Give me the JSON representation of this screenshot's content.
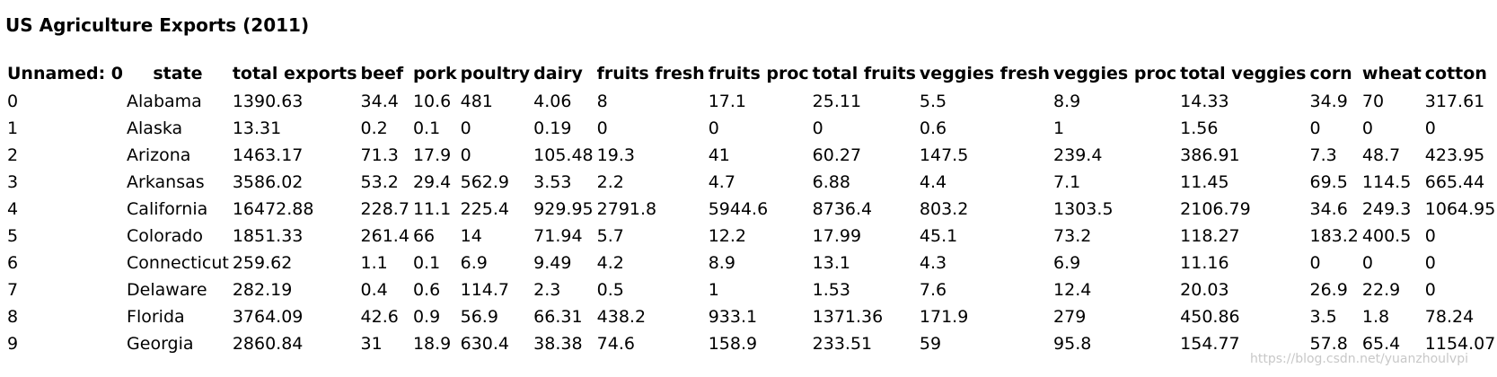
{
  "document": {
    "title": "US Agriculture Exports (2011)"
  },
  "table": {
    "columns": [
      "Unnamed: 0",
      "state",
      "total exports",
      "beef",
      "pork",
      "poultry",
      "dairy",
      "fruits fresh",
      "fruits proc",
      "total fruits",
      "veggies fresh",
      "veggies proc",
      "total veggies",
      "corn",
      "wheat",
      "cotton"
    ],
    "rows": [
      [
        "0",
        "Alabama",
        "1390.63",
        "34.4",
        "10.6",
        "481",
        "4.06",
        "8",
        "17.1",
        "25.11",
        "5.5",
        "8.9",
        "14.33",
        "34.9",
        "70",
        "317.61"
      ],
      [
        "1",
        "Alaska",
        "13.31",
        "0.2",
        "0.1",
        "0",
        "0.19",
        "0",
        "0",
        "0",
        "0.6",
        "1",
        "1.56",
        "0",
        "0",
        "0"
      ],
      [
        "2",
        "Arizona",
        "1463.17",
        "71.3",
        "17.9",
        "0",
        "105.48",
        "19.3",
        "41",
        "60.27",
        "147.5",
        "239.4",
        "386.91",
        "7.3",
        "48.7",
        "423.95"
      ],
      [
        "3",
        "Arkansas",
        "3586.02",
        "53.2",
        "29.4",
        "562.9",
        "3.53",
        "2.2",
        "4.7",
        "6.88",
        "4.4",
        "7.1",
        "11.45",
        "69.5",
        "114.5",
        "665.44"
      ],
      [
        "4",
        "California",
        "16472.88",
        "228.7",
        "11.1",
        "225.4",
        "929.95",
        "2791.8",
        "5944.6",
        "8736.4",
        "803.2",
        "1303.5",
        "2106.79",
        "34.6",
        "249.3",
        "1064.95"
      ],
      [
        "5",
        "Colorado",
        "1851.33",
        "261.4",
        "66",
        "14",
        "71.94",
        "5.7",
        "12.2",
        "17.99",
        "45.1",
        "73.2",
        "118.27",
        "183.2",
        "400.5",
        "0"
      ],
      [
        "6",
        "Connecticut",
        "259.62",
        "1.1",
        "0.1",
        "6.9",
        "9.49",
        "4.2",
        "8.9",
        "13.1",
        "4.3",
        "6.9",
        "11.16",
        "0",
        "0",
        "0"
      ],
      [
        "7",
        "Delaware",
        "282.19",
        "0.4",
        "0.6",
        "114.7",
        "2.3",
        "0.5",
        "1",
        "1.53",
        "7.6",
        "12.4",
        "20.03",
        "26.9",
        "22.9",
        "0"
      ],
      [
        "8",
        "Florida",
        "3764.09",
        "42.6",
        "0.9",
        "56.9",
        "66.31",
        "438.2",
        "933.1",
        "1371.36",
        "171.9",
        "279",
        "450.86",
        "3.5",
        "1.8",
        "78.24"
      ],
      [
        "9",
        "Georgia",
        "2860.84",
        "31",
        "18.9",
        "630.4",
        "38.38",
        "74.6",
        "158.9",
        "233.51",
        "59",
        "95.8",
        "154.77",
        "57.8",
        "65.4",
        "1154.07"
      ]
    ]
  },
  "watermark": {
    "text": "https://blog.csdn.net/yuanzhoulvpi"
  }
}
